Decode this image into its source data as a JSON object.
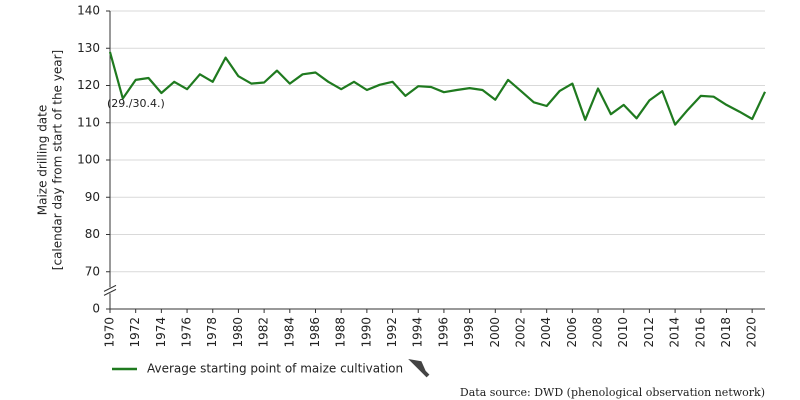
{
  "chart_data": {
    "type": "line",
    "y_label": [
      "Maize drilling date",
      "[calendar day from start of the year]"
    ],
    "annotations": [
      "(29./30.4.)"
    ],
    "source": "Data source: DWD (phenological observation network)",
    "x": [
      1970,
      1971,
      1972,
      1973,
      1974,
      1975,
      1976,
      1977,
      1978,
      1979,
      1980,
      1981,
      1982,
      1983,
      1984,
      1985,
      1986,
      1987,
      1988,
      1989,
      1990,
      1991,
      1992,
      1993,
      1994,
      1995,
      1996,
      1997,
      1998,
      1999,
      2000,
      2001,
      2002,
      2003,
      2004,
      2005,
      2006,
      2007,
      2008,
      2009,
      2010,
      2011,
      2012,
      2013,
      2014,
      2015,
      2016,
      2017,
      2018,
      2019,
      2020,
      2021
    ],
    "series": [
      {
        "name": "Average starting point of maize cultivation",
        "color": "#1f7a1f",
        "values": [
          129,
          116.5,
          121.5,
          122,
          118,
          121,
          119,
          123,
          121,
          127.5,
          122.5,
          120.5,
          120.8,
          124,
          120.5,
          123,
          123.5,
          121,
          119,
          121,
          118.8,
          120.2,
          121,
          117.2,
          119.8,
          119.6,
          118.2,
          118.8,
          119.3,
          118.8,
          116.2,
          121.5,
          118.5,
          115.5,
          114.5,
          118.5,
          120.5,
          110.8,
          119.2,
          112.3,
          114.8,
          111.2,
          116,
          118.5,
          109.5,
          113.5,
          117.2,
          117,
          114.8,
          113,
          111,
          118.3
        ]
      }
    ],
    "xlim": [
      1970,
      2021
    ],
    "xticks": [
      1970,
      1972,
      1974,
      1976,
      1978,
      1980,
      1982,
      1984,
      1986,
      1988,
      1990,
      1992,
      1994,
      1996,
      1998,
      2000,
      2002,
      2004,
      2006,
      2008,
      2010,
      2012,
      2014,
      2016,
      2018,
      2020
    ],
    "ylim": [
      0,
      140
    ],
    "yticks": [
      0,
      70,
      80,
      90,
      100,
      110,
      120,
      130,
      140
    ],
    "y_axis_break": true,
    "grid": true
  }
}
